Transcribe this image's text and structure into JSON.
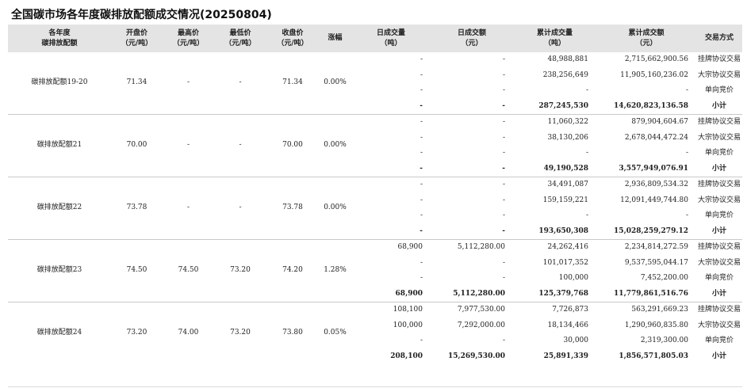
{
  "title": "全国碳市场各年度碳排放配额成交情况(20250804)",
  "headers": {
    "product": [
      "各年度",
      "碳排放配额"
    ],
    "open": [
      "开盘价",
      "（元/吨）"
    ],
    "high": [
      "最高价",
      "（元/吨）"
    ],
    "low": [
      "最低价",
      "（元/吨）"
    ],
    "close": [
      "收盘价",
      "（元/吨）"
    ],
    "change": [
      "涨幅"
    ],
    "day_volume": [
      "日成交量",
      "（吨）"
    ],
    "day_amount": [
      "日成交额",
      "（元）"
    ],
    "cum_volume": [
      "累计成交量",
      "（吨）"
    ],
    "cum_amount": [
      "累计成交额",
      "（元）"
    ],
    "mode": [
      "交易方式"
    ]
  },
  "groups": [
    {
      "product": "碳排放配额19-20",
      "open": "71.34",
      "high": "-",
      "low": "-",
      "close": "71.34",
      "change": "0.00%",
      "rows": [
        {
          "day_volume": "-",
          "day_amount": "-",
          "cum_volume": "48,988,881",
          "cum_amount": "2,715,662,900.56",
          "mode": "挂牌协议交易"
        },
        {
          "day_volume": "-",
          "day_amount": "-",
          "cum_volume": "238,256,649",
          "cum_amount": "11,905,160,236.02",
          "mode": "大宗协议交易"
        },
        {
          "day_volume": "-",
          "day_amount": "-",
          "cum_volume": "-",
          "cum_amount": "-",
          "mode": "单向竞价"
        },
        {
          "day_volume": "-",
          "day_amount": "-",
          "cum_volume": "287,245,530",
          "cum_amount": "14,620,823,136.58",
          "mode": "小计"
        }
      ]
    },
    {
      "product": "碳排放配额21",
      "open": "70.00",
      "high": "-",
      "low": "-",
      "close": "70.00",
      "change": "0.00%",
      "rows": [
        {
          "day_volume": "-",
          "day_amount": "-",
          "cum_volume": "11,060,322",
          "cum_amount": "879,904,604.67",
          "mode": "挂牌协议交易"
        },
        {
          "day_volume": "-",
          "day_amount": "-",
          "cum_volume": "38,130,206",
          "cum_amount": "2,678,044,472.24",
          "mode": "大宗协议交易"
        },
        {
          "day_volume": "-",
          "day_amount": "-",
          "cum_volume": "-",
          "cum_amount": "-",
          "mode": "单向竞价"
        },
        {
          "day_volume": "-",
          "day_amount": "-",
          "cum_volume": "49,190,528",
          "cum_amount": "3,557,949,076.91",
          "mode": "小计"
        }
      ]
    },
    {
      "product": "碳排放配额22",
      "open": "73.78",
      "high": "-",
      "low": "-",
      "close": "73.78",
      "change": "0.00%",
      "rows": [
        {
          "day_volume": "-",
          "day_amount": "-",
          "cum_volume": "34,491,087",
          "cum_amount": "2,936,809,534.32",
          "mode": "挂牌协议交易"
        },
        {
          "day_volume": "-",
          "day_amount": "-",
          "cum_volume": "159,159,221",
          "cum_amount": "12,091,449,744.80",
          "mode": "大宗协议交易"
        },
        {
          "day_volume": "-",
          "day_amount": "-",
          "cum_volume": "-",
          "cum_amount": "-",
          "mode": "单向竞价"
        },
        {
          "day_volume": "-",
          "day_amount": "-",
          "cum_volume": "193,650,308",
          "cum_amount": "15,028,259,279.12",
          "mode": "小计"
        }
      ]
    },
    {
      "product": "碳排放配额23",
      "open": "74.50",
      "high": "74.50",
      "low": "73.20",
      "close": "74.20",
      "change": "1.28%",
      "rows": [
        {
          "day_volume": "68,900",
          "day_amount": "5,112,280.00",
          "cum_volume": "24,262,416",
          "cum_amount": "2,234,814,272.59",
          "mode": "挂牌协议交易"
        },
        {
          "day_volume": "-",
          "day_amount": "-",
          "cum_volume": "101,017,352",
          "cum_amount": "9,537,595,044.17",
          "mode": "大宗协议交易"
        },
        {
          "day_volume": "-",
          "day_amount": "-",
          "cum_volume": "100,000",
          "cum_amount": "7,452,200.00",
          "mode": "单向竞价"
        },
        {
          "day_volume": "68,900",
          "day_amount": "5,112,280.00",
          "cum_volume": "125,379,768",
          "cum_amount": "11,779,861,516.76",
          "mode": "小计"
        }
      ]
    },
    {
      "product": "碳排放配额24",
      "open": "73.20",
      "high": "74.00",
      "low": "73.20",
      "close": "73.80",
      "change": "0.05%",
      "rows": [
        {
          "day_volume": "108,100",
          "day_amount": "7,977,530.00",
          "cum_volume": "7,726,873",
          "cum_amount": "563,291,669.23",
          "mode": "挂牌协议交易"
        },
        {
          "day_volume": "100,000",
          "day_amount": "7,292,000.00",
          "cum_volume": "18,134,466",
          "cum_amount": "1,290,960,835.80",
          "mode": "大宗协议交易"
        },
        {
          "day_volume": "-",
          "day_amount": "-",
          "cum_volume": "30,000",
          "cum_amount": "2,319,300.00",
          "mode": "单向竞价"
        },
        {
          "day_volume": "208,100",
          "day_amount": "15,269,530.00",
          "cum_volume": "25,891,339",
          "cum_amount": "1,856,571,805.03",
          "mode": "小计"
        }
      ]
    }
  ]
}
